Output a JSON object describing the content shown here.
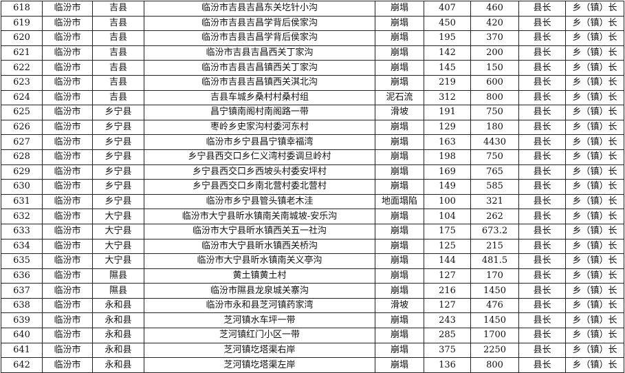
{
  "rows": [
    [
      "618",
      "临汾市",
      "吉县",
      "临汾市吉县吉昌东关圪针小沟",
      "崩塌",
      "407",
      "460",
      "县长",
      "乡（镇）长"
    ],
    [
      "619",
      "临汾市",
      "吉县",
      "临汾市吉县吉昌学背后侯家沟",
      "崩塌",
      "450",
      "420",
      "县长",
      "乡（镇）长"
    ],
    [
      "620",
      "临汾市",
      "吉县",
      "临汾市吉县吉昌学背后侯家沟",
      "崩塌",
      "195",
      "370",
      "县长",
      "乡（镇）长"
    ],
    [
      "621",
      "临汾市",
      "吉县",
      "临汾市吉县吉昌西关丁家沟",
      "崩塌",
      "142",
      "200",
      "县长",
      "乡（镇）长"
    ],
    [
      "622",
      "临汾市",
      "吉县",
      "临汾市吉县吉昌镇西关丁家沟",
      "崩塌",
      "145",
      "150",
      "县长",
      "乡（镇）长"
    ],
    [
      "623",
      "临汾市",
      "吉县",
      "临汾市吉县吉昌镇西关淇北沟",
      "崩塌",
      "219",
      "600",
      "县长",
      "乡（镇）长"
    ],
    [
      "624",
      "临汾市",
      "吉县",
      "吉县车城乡桑村村桑村组",
      "泥石流",
      "312",
      "800",
      "县长",
      "乡（镇）长"
    ],
    [
      "625",
      "临汾市",
      "乡宁县",
      "昌宁镇南阁村南阁路一带",
      "滑坡",
      "191",
      "750",
      "县长",
      "乡（镇）长"
    ],
    [
      "626",
      "临汾市",
      "乡宁县",
      "枣岭乡史家沟村委河东村",
      "崩塌",
      "129",
      "180",
      "县长",
      "乡（镇）长"
    ],
    [
      "627",
      "临汾市",
      "乡宁县",
      "临汾市乡宁县昌宁镇幸福湾",
      "崩塌",
      "163",
      "4430",
      "县长",
      "乡（镇）长"
    ],
    [
      "628",
      "临汾市",
      "乡宁县",
      "乡宁县西交口乡仁义湾村委调旦岭村",
      "崩塌",
      "198",
      "750",
      "县长",
      "乡（镇）长"
    ],
    [
      "629",
      "临汾市",
      "乡宁县",
      "乡宁县西交口乡西坡头村委安坪村",
      "崩塌",
      "169",
      "765",
      "县长",
      "乡（镇）长"
    ],
    [
      "630",
      "临汾市",
      "乡宁县",
      "乡宁县西交口乡南北营村委北营村",
      "崩塌",
      "149",
      "585",
      "县长",
      "乡（镇）长"
    ],
    [
      "631",
      "临汾市",
      "乡宁县",
      "临汾市乡宁县管头镇老木洼",
      "地面塌陷",
      "100",
      "321",
      "县长",
      "乡（镇）长"
    ],
    [
      "632",
      "临汾市",
      "大宁县",
      "临汾市大宁县昕水镇南关南城坡-安乐沟",
      "崩塌",
      "104",
      "262",
      "县长",
      "乡（镇）长"
    ],
    [
      "633",
      "临汾市",
      "大宁县",
      "临汾市大宁县昕水镇西关五一社沟",
      "崩塌",
      "175",
      "673.2",
      "县长",
      "乡（镇）长"
    ],
    [
      "634",
      "临汾市",
      "大宁县",
      "临汾市大宁县昕水镇西关桥沟",
      "崩塌",
      "125",
      "215",
      "县长",
      "乡（镇）长"
    ],
    [
      "635",
      "临汾市",
      "大宁县",
      "临汾市大宁县昕水镇南关义亭沟",
      "崩塌",
      "144",
      "481.5",
      "县长",
      "乡（镇）长"
    ],
    [
      "636",
      "临汾市",
      "隰县",
      "黄土镇黄土村",
      "崩塌",
      "127",
      "170",
      "县长",
      "乡（镇）长"
    ],
    [
      "637",
      "临汾市",
      "隰县",
      "临汾市隰县龙泉城关寨沟",
      "崩塌",
      "216",
      "1450",
      "县长",
      "乡（镇）长"
    ],
    [
      "638",
      "临汾市",
      "永和县",
      "临汾市永和县芝河镇药家湾",
      "滑坡",
      "127",
      "476",
      "县长",
      "乡（镇）长"
    ],
    [
      "639",
      "临汾市",
      "永和县",
      "芝河镇水车坪一带",
      "崩塌",
      "243",
      "1450",
      "县长",
      "乡（镇）长"
    ],
    [
      "640",
      "临汾市",
      "永和县",
      "芝河镇红门小区一带",
      "崩塌",
      "285",
      "1700",
      "县长",
      "乡（镇）长"
    ],
    [
      "641",
      "临汾市",
      "永和县",
      "芝河镇圪塔渠右岸",
      "崩塌",
      "375",
      "2250",
      "县长",
      "乡（镇）长"
    ],
    [
      "642",
      "临汾市",
      "永和县",
      "芝河镇圪塔渠左岸",
      "崩塌",
      "136",
      "800",
      "县长",
      "乡（镇）长"
    ]
  ]
}
